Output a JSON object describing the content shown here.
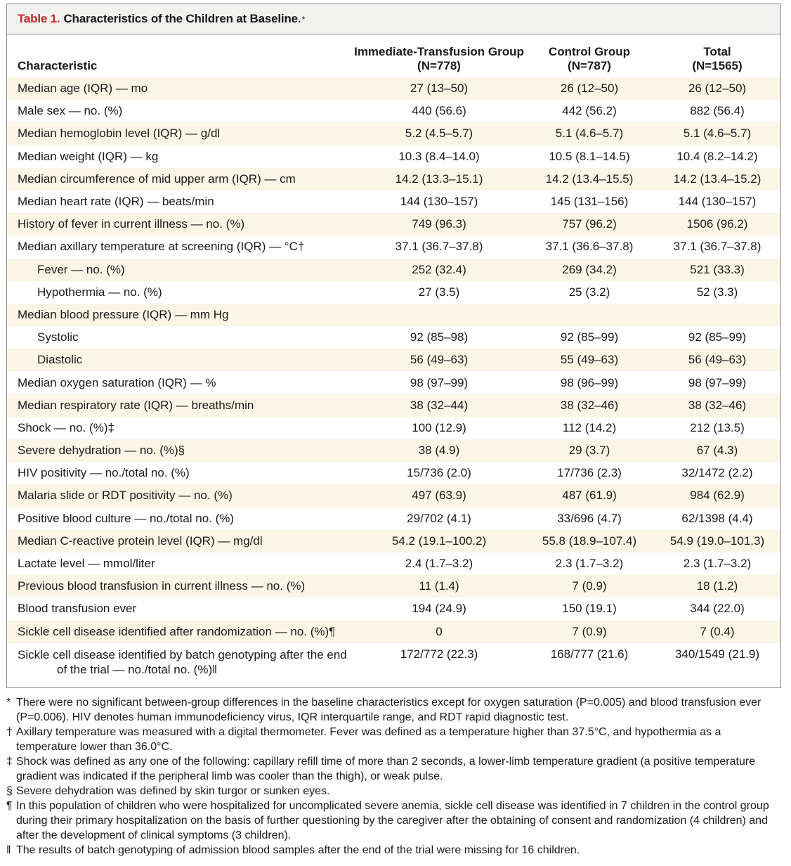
{
  "table": {
    "title_num": "Table 1.",
    "title_text": "Characteristics of the Children at Baseline.",
    "title_mark": "*",
    "headers": {
      "characteristic": "Characteristic",
      "group1_name": "Immediate-Transfusion Group",
      "group1_n": "(N=778)",
      "group2_name": "Control Group",
      "group2_n": "(N=787)",
      "total_name": "Total",
      "total_n": "(N=1565)"
    },
    "rows": [
      {
        "label": "Median age (IQR) — mo",
        "g1": "27 (13–50)",
        "g2": "26 (12–50)",
        "total": "26 (12–50)",
        "shaded": true
      },
      {
        "label": "Male sex — no. (%)",
        "g1": "440 (56.6)",
        "g2": "442 (56.2)",
        "total": "882 (56.4)",
        "shaded": false
      },
      {
        "label": "Median hemoglobin level (IQR) — g/dl",
        "g1": "5.2 (4.5–5.7)",
        "g2": "5.1 (4.6–5.7)",
        "total": "5.1 (4.6–5.7)",
        "shaded": true
      },
      {
        "label": "Median weight (IQR) — kg",
        "g1": "10.3 (8.4–14.0)",
        "g2": "10.5 (8.1–14.5)",
        "total": "10.4 (8.2–14.2)",
        "shaded": false
      },
      {
        "label": "Median circumference of mid upper arm (IQR) — cm",
        "g1": "14.2 (13.3–15.1)",
        "g2": "14.2 (13.4–15.5)",
        "total": "14.2 (13.4–15.2)",
        "shaded": true
      },
      {
        "label": "Median heart rate (IQR) — beats/min",
        "g1": "144 (130–157)",
        "g2": "145 (131–156)",
        "total": "144 (130–157)",
        "shaded": false
      },
      {
        "label": "History of fever in current illness — no. (%)",
        "g1": "749 (96.3)",
        "g2": "757 (96.2)",
        "total": "1506 (96.2)",
        "shaded": true
      },
      {
        "label": "Median axillary temperature at screening (IQR) — °C†",
        "g1": "37.1 (36.7–37.8)",
        "g2": "37.1 (36.6–37.8)",
        "total": "37.1 (36.7–37.8)",
        "shaded": false
      },
      {
        "label": "Fever — no. (%)",
        "g1": "252 (32.4)",
        "g2": "269 (34.2)",
        "total": "521 (33.3)",
        "shaded": true,
        "sub": true
      },
      {
        "label": "Hypothermia — no. (%)",
        "g1": "27 (3.5)",
        "g2": "25 (3.2)",
        "total": "52 (3.3)",
        "shaded": false,
        "sub": true
      },
      {
        "label": "Median blood pressure (IQR) — mm Hg",
        "g1": "",
        "g2": "",
        "total": "",
        "shaded": true
      },
      {
        "label": "Systolic",
        "g1": "92 (85–98)",
        "g2": "92 (85–99)",
        "total": "92 (85–99)",
        "shaded": false,
        "sub": true
      },
      {
        "label": "Diastolic",
        "g1": "56 (49–63)",
        "g2": "55 (49–63)",
        "total": "56 (49–63)",
        "shaded": true,
        "sub": true
      },
      {
        "label": "Median oxygen saturation (IQR) — %",
        "g1": "98 (97–99)",
        "g2": "98 (96–99)",
        "total": "98 (97–99)",
        "shaded": false
      },
      {
        "label": "Median respiratory rate (IQR) — breaths/min",
        "g1": "38 (32–44)",
        "g2": "38 (32–46)",
        "total": "38 (32–46)",
        "shaded": true
      },
      {
        "label": "Shock — no. (%)‡",
        "g1": "100 (12.9)",
        "g2": "112 (14.2)",
        "total": "212 (13.5)",
        "shaded": false
      },
      {
        "label": "Severe dehydration — no. (%)§",
        "g1": "38 (4.9)",
        "g2": "29 (3.7)",
        "total": "67 (4.3)",
        "shaded": true
      },
      {
        "label": "HIV positivity — no./total no. (%)",
        "g1": "15/736 (2.0)",
        "g2": "17/736 (2.3)",
        "total": "32/1472 (2.2)",
        "shaded": false
      },
      {
        "label": "Malaria slide or RDT positivity — no. (%)",
        "g1": "497 (63.9)",
        "g2": "487 (61.9)",
        "total": "984 (62.9)",
        "shaded": true
      },
      {
        "label": "Positive blood culture — no./total no. (%)",
        "g1": "29/702 (4.1)",
        "g2": "33/696 (4.7)",
        "total": "62/1398 (4.4)",
        "shaded": false
      },
      {
        "label": "Median C-reactive protein level (IQR) — mg/dl",
        "g1": "54.2 (19.1–100.2)",
        "g2": "55.8 (18.9–107.4)",
        "total": "54.9 (19.0–101.3)",
        "shaded": true
      },
      {
        "label": "Lactate level — mmol/liter",
        "g1": "2.4 (1.7–3.2)",
        "g2": "2.3 (1.7–3.2)",
        "total": "2.3 (1.7–3.2)",
        "shaded": false
      },
      {
        "label": "Previous blood transfusion in current illness — no. (%)",
        "g1": "11 (1.4)",
        "g2": "7 (0.9)",
        "total": "18 (1.2)",
        "shaded": true
      },
      {
        "label": "Blood transfusion ever",
        "g1": "194 (24.9)",
        "g2": "150 (19.1)",
        "total": "344 (22.0)",
        "shaded": false
      },
      {
        "label": "Sickle cell disease identified after randomization — no. (%)¶",
        "g1": "0",
        "g2": "7 (0.9)",
        "total": "7 (0.4)",
        "shaded": true
      }
    ],
    "last_row": {
      "label_line1": "Sickle cell disease identified by batch genotyping after the end",
      "label_line2": "of the trial — no./total no. (%)‖",
      "g1": "172/772 (22.3)",
      "g2": "168/777 (21.6)",
      "total": "340/1549 (21.9)"
    }
  },
  "footnotes": [
    {
      "mark": "*",
      "text": "There were no significant between-group differences in the baseline characteristics except for oxygen saturation (P=0.005) and blood transfusion ever (P=0.006). HIV denotes human immunodeficiency virus, IQR interquartile range, and RDT rapid diagnostic test."
    },
    {
      "mark": "†",
      "text": "Axillary temperature was measured with a digital thermometer. Fever was defined as a temperature higher than 37.5°C, and hypothermia as a temperature lower than 36.0°C."
    },
    {
      "mark": "‡",
      "text": "Shock was defined as any one of the following: capillary refill time of more than 2 seconds, a lower-limb temperature gradient (a positive temperature gradient was indicated if the peripheral limb was cooler than the thigh), or weak pulse."
    },
    {
      "mark": "§",
      "text": "Severe dehydration was defined by skin turgor or sunken eyes."
    },
    {
      "mark": "¶",
      "text": "In this population of children who were hospitalized for uncomplicated severe anemia, sickle cell disease was identified in 7 children in the control group during their primary hospitalization on the basis of further questioning by the caregiver after the obtaining of consent and randomization (4 children) and after the development of clinical symptoms (3 children)."
    },
    {
      "mark": "‖",
      "text": "The results of batch genotyping of admission blood samples after the end of the trial were missing for 16 children."
    }
  ]
}
